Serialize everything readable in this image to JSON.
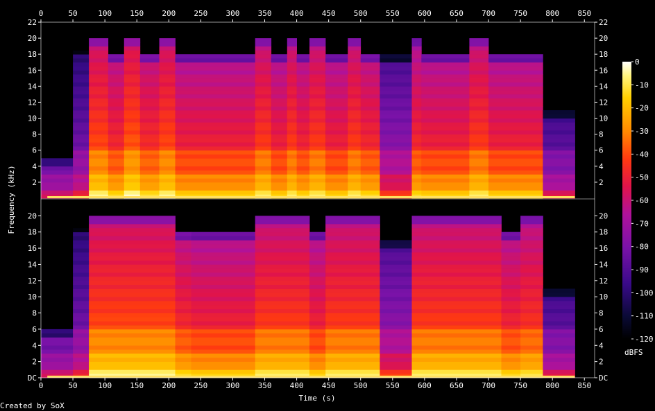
{
  "chart_data": {
    "type": "heatmap",
    "title": "",
    "xlabel": "Time (s)",
    "ylabel": "Frequency (kHz)",
    "xlim": [
      0,
      866
    ],
    "ylim_khz": [
      0,
      22
    ],
    "x_ticks": [
      "0",
      "50",
      "100",
      "150",
      "200",
      "250",
      "300",
      "350",
      "400",
      "450",
      "500",
      "550",
      "600",
      "650",
      "700",
      "750",
      "800",
      "850"
    ],
    "y_ticks_top": [
      "2",
      "4",
      "6",
      "8",
      "10",
      "12",
      "14",
      "16",
      "18",
      "20",
      "22"
    ],
    "y_ticks_bottom": [
      "DC",
      "2",
      "4",
      "6",
      "8",
      "10",
      "12",
      "14",
      "16",
      "18",
      "20"
    ],
    "colorbar": {
      "label": "dBFS",
      "range": [
        -120,
        0
      ],
      "ticks": [
        "0",
        "-10",
        "-20",
        "-30",
        "-40",
        "-50",
        "-60",
        "-70",
        "-80",
        "-90",
        "-100",
        "-110",
        "-120"
      ]
    },
    "channels": [
      {
        "segments": [
          {
            "t0": 0,
            "t1": 50,
            "cutoff_khz": 5,
            "level": 0.25
          },
          {
            "t0": 50,
            "t1": 75,
            "cutoff_khz": 19,
            "level": 0.32
          },
          {
            "t0": 75,
            "t1": 105,
            "cutoff_khz": 20,
            "level": 0.68
          },
          {
            "t0": 105,
            "t1": 130,
            "cutoff_khz": 18,
            "level": 0.62
          },
          {
            "t0": 130,
            "t1": 155,
            "cutoff_khz": 20,
            "level": 0.7
          },
          {
            "t0": 155,
            "t1": 185,
            "cutoff_khz": 18,
            "level": 0.63
          },
          {
            "t0": 185,
            "t1": 210,
            "cutoff_khz": 20,
            "level": 0.68
          },
          {
            "t0": 210,
            "t1": 335,
            "cutoff_khz": 18,
            "level": 0.6
          },
          {
            "t0": 335,
            "t1": 360,
            "cutoff_khz": 20,
            "level": 0.66
          },
          {
            "t0": 360,
            "t1": 385,
            "cutoff_khz": 18,
            "level": 0.6
          },
          {
            "t0": 385,
            "t1": 400,
            "cutoff_khz": 20,
            "level": 0.66
          },
          {
            "t0": 400,
            "t1": 420,
            "cutoff_khz": 18,
            "level": 0.61
          },
          {
            "t0": 420,
            "t1": 445,
            "cutoff_khz": 20,
            "level": 0.66
          },
          {
            "t0": 445,
            "t1": 480,
            "cutoff_khz": 18,
            "level": 0.6
          },
          {
            "t0": 480,
            "t1": 500,
            "cutoff_khz": 20,
            "level": 0.66
          },
          {
            "t0": 500,
            "t1": 530,
            "cutoff_khz": 18,
            "level": 0.62
          },
          {
            "t0": 530,
            "t1": 580,
            "cutoff_khz": 18,
            "level": 0.38
          },
          {
            "t0": 580,
            "t1": 595,
            "cutoff_khz": 20,
            "level": 0.62
          },
          {
            "t0": 595,
            "t1": 670,
            "cutoff_khz": 18,
            "level": 0.6
          },
          {
            "t0": 670,
            "t1": 700,
            "cutoff_khz": 20,
            "level": 0.66
          },
          {
            "t0": 700,
            "t1": 785,
            "cutoff_khz": 18,
            "level": 0.6
          },
          {
            "t0": 785,
            "t1": 835,
            "cutoff_khz": 11,
            "level": 0.28
          },
          {
            "t0": 835,
            "t1": 866,
            "cutoff_khz": 0,
            "level": 0.0
          }
        ]
      },
      {
        "segments": [
          {
            "t0": 0,
            "t1": 50,
            "cutoff_khz": 6,
            "level": 0.25
          },
          {
            "t0": 50,
            "t1": 75,
            "cutoff_khz": 19,
            "level": 0.32
          },
          {
            "t0": 75,
            "t1": 210,
            "cutoff_khz": 20,
            "level": 0.68
          },
          {
            "t0": 210,
            "t1": 235,
            "cutoff_khz": 18,
            "level": 0.62
          },
          {
            "t0": 235,
            "t1": 335,
            "cutoff_khz": 18,
            "level": 0.6
          },
          {
            "t0": 335,
            "t1": 420,
            "cutoff_khz": 20,
            "level": 0.66
          },
          {
            "t0": 420,
            "t1": 445,
            "cutoff_khz": 18,
            "level": 0.6
          },
          {
            "t0": 445,
            "t1": 530,
            "cutoff_khz": 20,
            "level": 0.66
          },
          {
            "t0": 530,
            "t1": 580,
            "cutoff_khz": 17,
            "level": 0.38
          },
          {
            "t0": 580,
            "t1": 720,
            "cutoff_khz": 20,
            "level": 0.66
          },
          {
            "t0": 720,
            "t1": 750,
            "cutoff_khz": 18,
            "level": 0.61
          },
          {
            "t0": 750,
            "t1": 785,
            "cutoff_khz": 20,
            "level": 0.64
          },
          {
            "t0": 785,
            "t1": 835,
            "cutoff_khz": 11,
            "level": 0.28
          },
          {
            "t0": 835,
            "t1": 866,
            "cutoff_khz": 0,
            "level": 0.0
          }
        ]
      }
    ]
  },
  "footer": {
    "credit": "Created by SoX"
  }
}
